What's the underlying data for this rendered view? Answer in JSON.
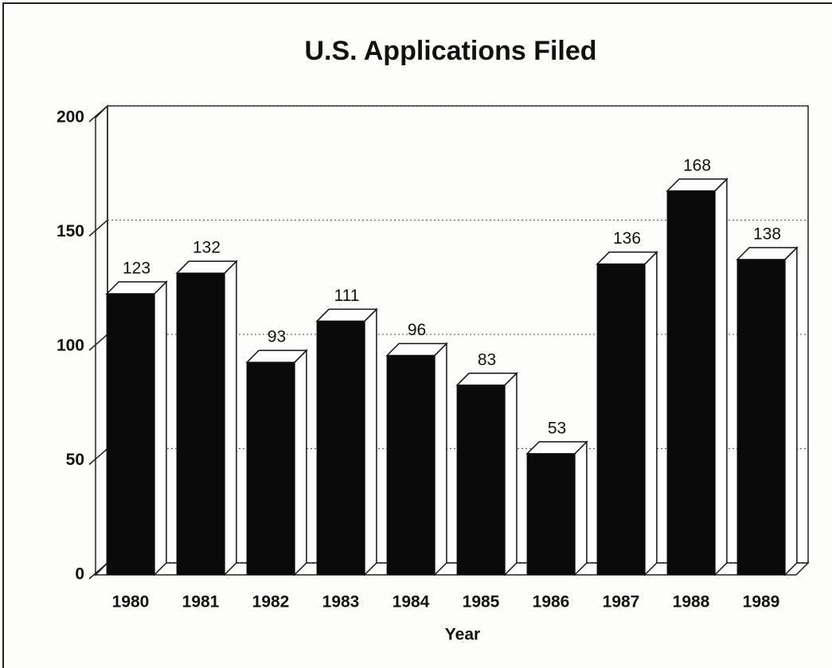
{
  "chart_data": {
    "type": "bar3d",
    "title": "U.S. Applications Filed",
    "x_label": "Year",
    "categories": [
      "1980",
      "1981",
      "1982",
      "1983",
      "1984",
      "1985",
      "1986",
      "1987",
      "1988",
      "1989"
    ],
    "values": [
      123,
      132,
      93,
      111,
      96,
      83,
      53,
      136,
      168,
      138
    ],
    "color": "#0a0a0a",
    "ylim": [
      0,
      200
    ],
    "yticks": [
      0,
      50,
      100,
      150,
      200
    ],
    "grid": true
  }
}
